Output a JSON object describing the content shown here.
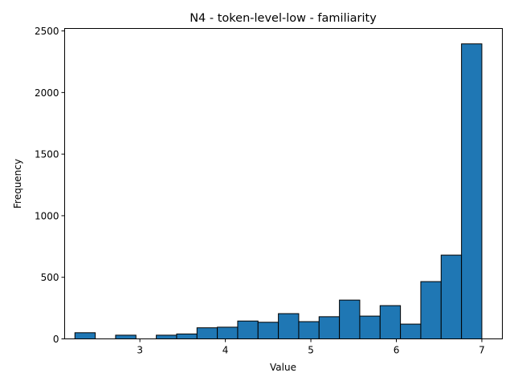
{
  "chart_data": {
    "type": "bar",
    "title": "N4 - token-level-low - familiarity",
    "xlabel": "Value",
    "ylabel": "Frequency",
    "xlim": [
      2.12,
      7.24
    ],
    "ylim": [
      0,
      2520
    ],
    "xticks": [
      3,
      4,
      5,
      6,
      7
    ],
    "yticks": [
      0,
      500,
      1000,
      1500,
      2000,
      2500
    ],
    "bins": [
      {
        "x0": 2.24,
        "x1": 2.478,
        "count": 50
      },
      {
        "x0": 2.478,
        "x1": 2.716,
        "count": 0
      },
      {
        "x0": 2.716,
        "x1": 2.954,
        "count": 30
      },
      {
        "x0": 2.954,
        "x1": 3.192,
        "count": 0
      },
      {
        "x0": 3.192,
        "x1": 3.43,
        "count": 30
      },
      {
        "x0": 3.43,
        "x1": 3.668,
        "count": 40
      },
      {
        "x0": 3.668,
        "x1": 3.906,
        "count": 90
      },
      {
        "x0": 3.906,
        "x1": 4.144,
        "count": 95
      },
      {
        "x0": 4.144,
        "x1": 4.382,
        "count": 145
      },
      {
        "x0": 4.382,
        "x1": 4.62,
        "count": 135
      },
      {
        "x0": 4.62,
        "x1": 4.858,
        "count": 205
      },
      {
        "x0": 4.858,
        "x1": 5.096,
        "count": 140
      },
      {
        "x0": 5.096,
        "x1": 5.334,
        "count": 180
      },
      {
        "x0": 5.334,
        "x1": 5.572,
        "count": 315
      },
      {
        "x0": 5.572,
        "x1": 5.81,
        "count": 185
      },
      {
        "x0": 5.81,
        "x1": 6.048,
        "count": 270
      },
      {
        "x0": 6.048,
        "x1": 6.286,
        "count": 120
      },
      {
        "x0": 6.286,
        "x1": 6.524,
        "count": 465
      },
      {
        "x0": 6.524,
        "x1": 6.762,
        "count": 680
      },
      {
        "x0": 6.762,
        "x1": 7.0,
        "count": 2395
      }
    ],
    "bar_color": "#1f77b4",
    "edge_color": "#000000",
    "grid": false
  }
}
